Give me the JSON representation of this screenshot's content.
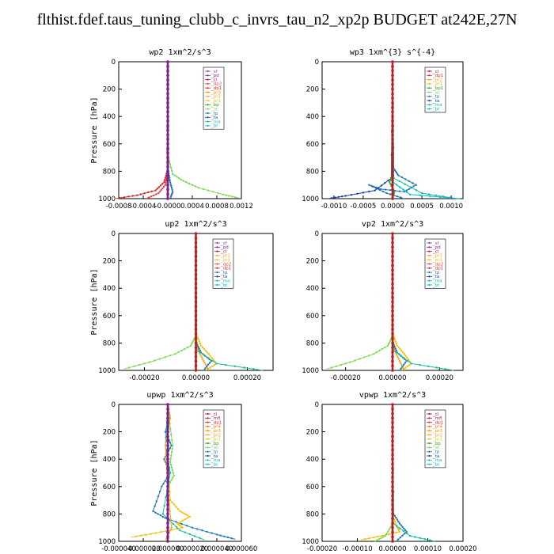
{
  "page": {
    "title": "flthist.fdef.taus_tuning_clubb_c_invrs_tau_n2_xp2p  BUDGET at242E,27N"
  },
  "colors": {
    "sf": "#8e44ad",
    "pd": "#8e1a8e",
    "cl": "#c0143c",
    "mfl": "#a0185a",
    "dp1": "#d62728",
    "dp2": "#e8424a",
    "pr1": "#f2c10f",
    "pr2": "#f5a623",
    "pr3": "#ff8c00",
    "pr4": "#e67300",
    "bp": "#2ca02c",
    "bp1": "#2ca02c",
    "ac": "#7ed957",
    "tp": "#1f77b4",
    "ta": "#1f3fa0",
    "ma": "#1abc9c",
    "bt": "#00bcd4"
  },
  "chart_data": [
    {
      "id": "wp2",
      "type": "line",
      "title": "wp2   1xm^2/s^3",
      "ylabel": "Pressure  [hPa]",
      "xlim": [
        -0.0008,
        0.0012
      ],
      "ylim": [
        1000,
        0
      ],
      "xticks": [
        -0.0008,
        -0.0004,
        0.0,
        0.0004,
        0.0008,
        0.0012
      ],
      "xtick_labels": [
        "-0.0008",
        "-0.0004",
        "-0.0000",
        "0.0004",
        "0.0008",
        "0.0012"
      ],
      "yticks": [
        0,
        200,
        400,
        600,
        800,
        1000
      ],
      "legend": [
        "_sf",
        "_pd",
        "_cl",
        "_dp2",
        "_dp1",
        "_pr3",
        "_pr2",
        "_pr1",
        "_bp",
        "_ac",
        "_tp",
        "_ta",
        "_ma",
        "_bt"
      ],
      "series": [
        {
          "key": "ac",
          "x": [
            0,
            1e-05,
            8e-05,
            0.00025,
            0.0005,
            0.0009,
            0.00115
          ],
          "y": [
            0,
            700,
            820,
            870,
            920,
            970,
            995
          ]
        },
        {
          "key": "dp1",
          "x": [
            0,
            -1e-05,
            -6e-05,
            -0.0002,
            -0.0005,
            -0.00085
          ],
          "y": [
            0,
            800,
            880,
            940,
            975,
            1000
          ]
        },
        {
          "key": "dp2",
          "x": [
            0,
            -1e-05,
            -4e-05,
            -0.00015,
            -0.00035
          ],
          "y": [
            0,
            820,
            900,
            960,
            1000
          ]
        },
        {
          "key": "tp",
          "x": [
            0,
            1e-05,
            4e-05,
            8e-05,
            4e-05
          ],
          "y": [
            0,
            800,
            880,
            950,
            1000
          ]
        },
        {
          "key": "pd",
          "x": [
            0,
            0,
            0,
            0,
            0,
            0,
            0
          ],
          "y": [
            0,
            200,
            400,
            600,
            800,
            900,
            1000
          ]
        },
        {
          "key": "sf",
          "x": [
            0,
            0,
            0,
            0,
            0
          ],
          "y": [
            0,
            250,
            500,
            750,
            1000
          ]
        }
      ]
    },
    {
      "id": "wp3",
      "type": "line",
      "title": "wp3   1xm^{3} s^{-4}",
      "ylabel": "",
      "xlim": [
        -0.0012,
        0.0012
      ],
      "ylim": [
        1000,
        0
      ],
      "xticks": [
        -0.001,
        -0.0005,
        0.0,
        0.0005,
        0.001
      ],
      "xtick_labels": [
        "-0.0010",
        "-0.0005",
        "0.0000",
        "0.0005",
        "0.0010"
      ],
      "yticks": [
        0,
        200,
        400,
        600,
        800,
        1000
      ],
      "legend": [
        "_cl",
        "_dp1",
        "_pr2",
        "_pr1",
        "_bp1",
        "_ac",
        "_tp",
        "_ta",
        "_ma",
        "_bt"
      ],
      "series": [
        {
          "key": "tp",
          "x": [
            0,
            2e-05,
            0.0001,
            0.0004,
            0.0002,
            -0.0002,
            -0.0004,
            -0.0001,
            0.0002
          ],
          "y": [
            0,
            780,
            830,
            900,
            950,
            930,
            900,
            960,
            1000
          ]
        },
        {
          "key": "ta",
          "x": [
            0,
            -2e-05,
            -0.0003,
            -0.0008,
            -0.0011
          ],
          "y": [
            0,
            850,
            940,
            980,
            1000
          ]
        },
        {
          "key": "ma",
          "x": [
            0,
            2e-05,
            0.0005,
            0.0011
          ],
          "y": [
            0,
            850,
            960,
            1000
          ]
        },
        {
          "key": "bt",
          "x": [
            0,
            1e-05,
            0.0003,
            0.00115
          ],
          "y": [
            0,
            880,
            970,
            1000
          ]
        },
        {
          "key": "bp1",
          "x": [
            0,
            1e-05,
            -5e-05,
            3e-05,
            0
          ],
          "y": [
            0,
            800,
            880,
            950,
            1000
          ]
        },
        {
          "key": "cl",
          "x": [
            0,
            0,
            0,
            0,
            0,
            0
          ],
          "y": [
            0,
            200,
            400,
            600,
            800,
            1000
          ]
        }
      ]
    },
    {
      "id": "up2",
      "type": "line",
      "title": "up2   1xm^2/s^3",
      "ylabel": "Pressure  [hPa]",
      "xlim": [
        -0.0003,
        0.0003
      ],
      "ylim": [
        1000,
        0
      ],
      "xticks": [
        -0.0002,
        0.0,
        0.0002
      ],
      "xtick_labels": [
        "-0.00020",
        "0.00000",
        "0.00020"
      ],
      "yticks": [
        0,
        200,
        400,
        600,
        800,
        1000
      ],
      "legend": [
        "_sf",
        "_pd",
        "_cl",
        "_pr2",
        "_pr1",
        "_dp2",
        "_dp1",
        "_tp",
        "_ta",
        "_ma",
        "_bt"
      ],
      "series": [
        {
          "key": "ac",
          "x": [
            0,
            -3e-06,
            -2e-05,
            -8e-05,
            -0.00018,
            -0.00028
          ],
          "y": [
            0,
            760,
            820,
            880,
            940,
            990
          ]
        },
        {
          "key": "pr1",
          "x": [
            0,
            3e-06,
            2e-05,
            5e-05,
            8e-05,
            4e-05
          ],
          "y": [
            0,
            740,
            820,
            880,
            950,
            1000
          ]
        },
        {
          "key": "pr2",
          "x": [
            0,
            2e-06,
            1e-05,
            3e-05,
            5e-05
          ],
          "y": [
            0,
            780,
            860,
            930,
            1000
          ]
        },
        {
          "key": "tp",
          "x": [
            0,
            2e-06,
            2e-05,
            6e-05,
            3e-05
          ],
          "y": [
            0,
            800,
            870,
            930,
            1000
          ]
        },
        {
          "key": "ma",
          "x": [
            0,
            2e-06,
            8e-05,
            0.00026
          ],
          "y": [
            0,
            850,
            950,
            1000
          ]
        },
        {
          "key": "dp1",
          "x": [
            0,
            0,
            0,
            0,
            0,
            0
          ],
          "y": [
            0,
            200,
            400,
            600,
            800,
            1000
          ]
        }
      ]
    },
    {
      "id": "vp2",
      "type": "line",
      "title": "vp2   1xm^2/s^3",
      "ylabel": "",
      "xlim": [
        -0.0003,
        0.0003
      ],
      "ylim": [
        1000,
        0
      ],
      "xticks": [
        -0.0002,
        0.0,
        0.0002
      ],
      "xtick_labels": [
        "-0.00020",
        "0.00000",
        "0.00020"
      ],
      "yticks": [
        0,
        200,
        400,
        600,
        800,
        1000
      ],
      "legend": [
        "_sf",
        "_pd",
        "_cl",
        "_pr2",
        "_pr1",
        "_dp2",
        "_dp1",
        "_tp",
        "_ta",
        "_ma",
        "_bt"
      ],
      "series": [
        {
          "key": "ac",
          "x": [
            0,
            -3e-06,
            -2e-05,
            -8e-05,
            -0.00018,
            -0.00028
          ],
          "y": [
            0,
            760,
            820,
            880,
            940,
            990
          ]
        },
        {
          "key": "pr1",
          "x": [
            0,
            3e-06,
            2e-05,
            5e-05,
            8e-05,
            4e-05
          ],
          "y": [
            0,
            740,
            820,
            880,
            950,
            1000
          ]
        },
        {
          "key": "pr2",
          "x": [
            0,
            2e-06,
            1e-05,
            3e-05,
            5e-05
          ],
          "y": [
            0,
            780,
            860,
            930,
            1000
          ]
        },
        {
          "key": "tp",
          "x": [
            0,
            2e-06,
            2e-05,
            6e-05,
            3e-05
          ],
          "y": [
            0,
            800,
            870,
            930,
            1000
          ]
        },
        {
          "key": "ma",
          "x": [
            0,
            2e-06,
            8e-05,
            0.00026
          ],
          "y": [
            0,
            850,
            950,
            1000
          ]
        },
        {
          "key": "dp1",
          "x": [
            0,
            0,
            0,
            0,
            0,
            0
          ],
          "y": [
            0,
            200,
            400,
            600,
            800,
            1000
          ]
        }
      ]
    },
    {
      "id": "upwp",
      "type": "line",
      "title": "upwp   1xm^2/s^3",
      "ylabel": "Pressure  [hPa]",
      "xlim": [
        -4e-05,
        6e-05
      ],
      "ylim": [
        1000,
        0
      ],
      "xticks": [
        -4e-05,
        -2e-05,
        0.0,
        2e-05,
        4e-05,
        6e-05
      ],
      "xtick_labels": [
        "-0.000040",
        "-0.000020",
        "0.000000",
        "0.000020",
        "0.000040",
        "0.000060"
      ],
      "yticks": [
        0,
        200,
        400,
        600,
        800,
        1000
      ],
      "legend": [
        "_cl",
        "_mfl",
        "_dp1",
        "_pr4",
        "_pr3",
        "_pr2",
        "_pr1",
        "_bp",
        "_ac",
        "_tp",
        "_ta",
        "_ma",
        "_bt"
      ],
      "series": [
        {
          "key": "tp",
          "x": [
            0,
            2e-06,
            -2e-06,
            3e-06,
            -3e-06,
            2e-06,
            -5e-06,
            -1.2e-05,
            -2e-06,
            2e-05,
            4e-05,
            5.5e-05
          ],
          "y": [
            0,
            100,
            200,
            300,
            400,
            500,
            600,
            780,
            830,
            900,
            950,
            985
          ]
        },
        {
          "key": "pr1",
          "x": [
            0,
            0,
            2e-06,
            1e-05,
            1.8e-05,
            8e-06,
            1.2e-05,
            -1e-05,
            -3e-05
          ],
          "y": [
            0,
            400,
            700,
            780,
            820,
            870,
            900,
            940,
            970
          ]
        },
        {
          "key": "ac",
          "x": [
            0,
            1e-06,
            4e-06,
            2e-06,
            5e-06,
            0,
            0
          ],
          "y": [
            0,
            100,
            300,
            420,
            520,
            600,
            1000
          ]
        },
        {
          "key": "ma",
          "x": [
            0,
            -2e-06,
            2e-06,
            -4e-06,
            1e-05,
            3e-05
          ],
          "y": [
            0,
            300,
            500,
            800,
            920,
            990
          ]
        },
        {
          "key": "pr2",
          "x": [
            0,
            2e-06,
            -2e-06,
            0,
            3e-06,
            -2e-06
          ],
          "y": [
            0,
            100,
            300,
            600,
            900,
            1000
          ]
        },
        {
          "key": "mfl",
          "x": [
            0,
            0,
            0,
            0,
            0,
            0
          ],
          "y": [
            0,
            200,
            400,
            600,
            800,
            1000
          ]
        }
      ]
    },
    {
      "id": "vpwp",
      "type": "line",
      "title": "vpwp   1xm^2/s^3",
      "ylabel": "",
      "xlim": [
        -0.0002,
        0.0002
      ],
      "ylim": [
        1000,
        0
      ],
      "xticks": [
        -0.0002,
        -0.0001,
        0.0,
        0.0001,
        0.0002
      ],
      "xtick_labels": [
        "-0.00020",
        "-0.00010",
        "0.00000",
        "0.00010",
        "0.00020"
      ],
      "yticks": [
        0,
        200,
        400,
        600,
        800,
        1000
      ],
      "legend": [
        "_cl",
        "_mfl",
        "_dp1",
        "_pr4",
        "_pr3",
        "_pr2",
        "_pr1",
        "_bp",
        "_ac",
        "_tp",
        "_ta",
        "_ma",
        "_bt"
      ],
      "series": [
        {
          "key": "pr1",
          "x": [
            0,
            2e-06,
            1e-05,
            2e-05,
            -3e-05,
            -9e-05
          ],
          "y": [
            0,
            820,
            880,
            930,
            960,
            990
          ]
        },
        {
          "key": "tp",
          "x": [
            0,
            3e-06,
            2e-05,
            4e-05,
            1e-05
          ],
          "y": [
            0,
            800,
            870,
            930,
            1000
          ]
        },
        {
          "key": "ma",
          "x": [
            0,
            2e-06,
            5e-05,
            0.00012
          ],
          "y": [
            0,
            870,
            960,
            1000
          ]
        },
        {
          "key": "ac",
          "x": [
            0,
            -2e-06,
            -2e-05,
            -5e-05
          ],
          "y": [
            0,
            880,
            960,
            1000
          ]
        },
        {
          "key": "mfl",
          "x": [
            0,
            0,
            0,
            0,
            0,
            0
          ],
          "y": [
            0,
            200,
            400,
            600,
            800,
            1000
          ]
        }
      ]
    }
  ]
}
